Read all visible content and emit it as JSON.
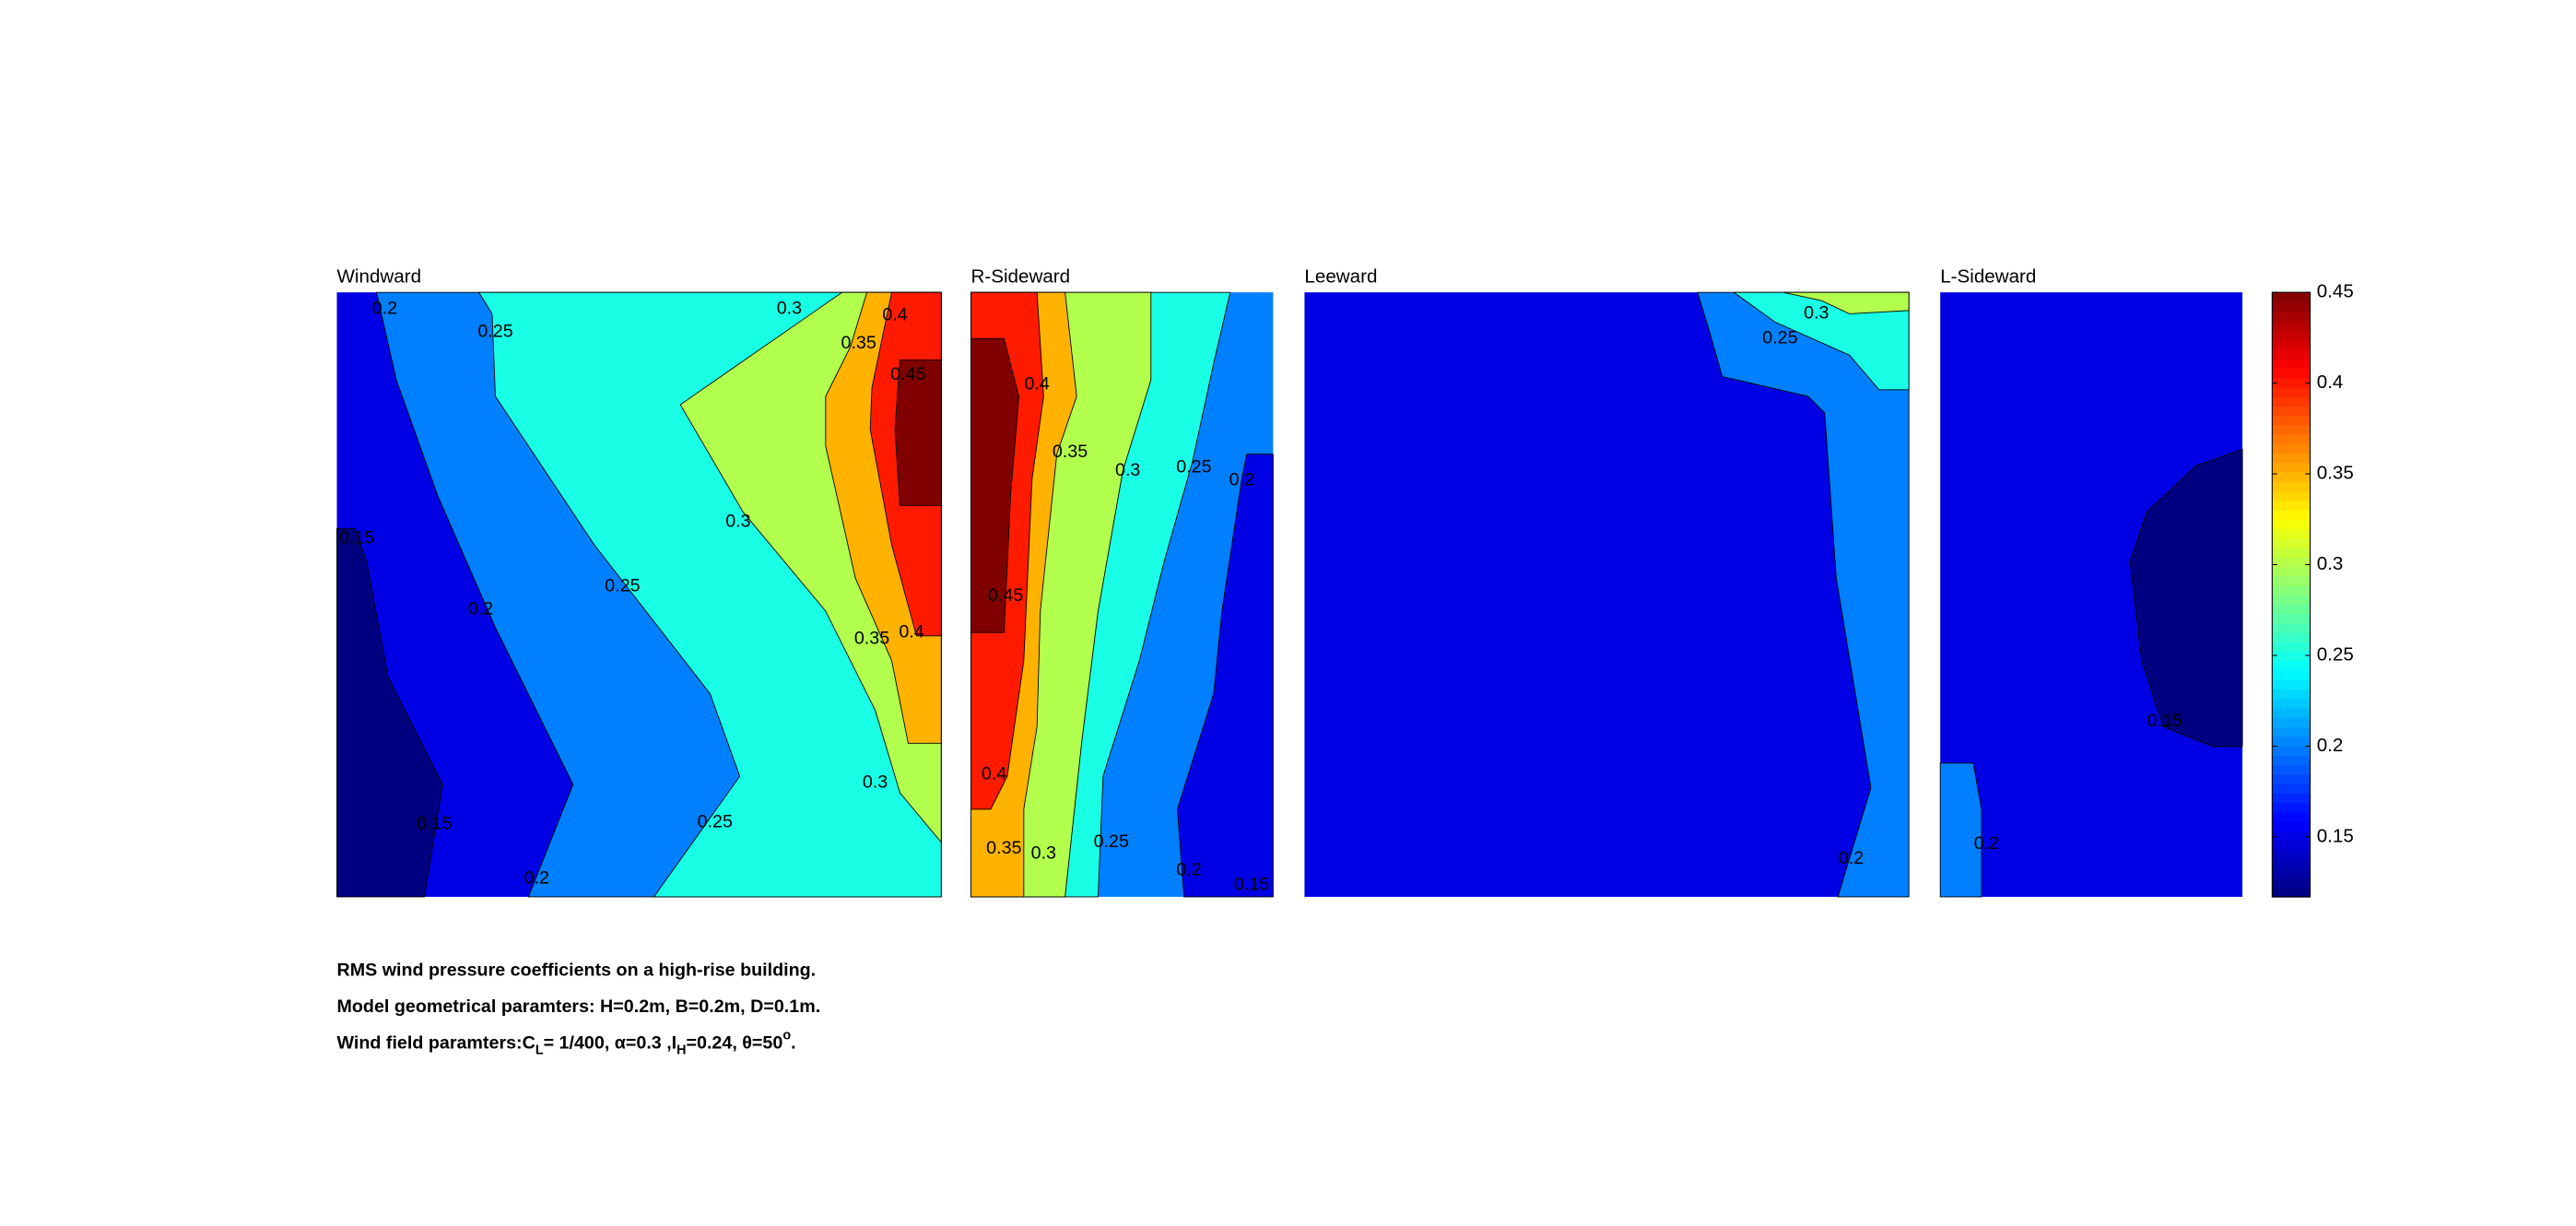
{
  "chart_data": [
    {
      "type": "contour",
      "title": "Windward",
      "levels": [
        0.15,
        0.2,
        0.25,
        0.3,
        0.35,
        0.4,
        0.45
      ],
      "contour_labels": [
        0.2,
        0.25,
        0.3,
        0.35,
        0.4,
        0.45,
        0.15,
        0.3,
        0.25,
        0.2,
        0.35,
        0.4,
        0.3,
        0.25,
        0.15,
        0.2
      ]
    },
    {
      "type": "contour",
      "title": "R-Sideward",
      "levels": [
        0.15,
        0.2,
        0.25,
        0.3,
        0.35,
        0.4,
        0.45
      ],
      "contour_labels": [
        0.4,
        0.35,
        0.3,
        0.25,
        0.2,
        0.45,
        0.4,
        0.35,
        0.3,
        0.25,
        0.2,
        0.15
      ]
    },
    {
      "type": "contour",
      "title": "Leeward",
      "levels": [
        0.15,
        0.2,
        0.25,
        0.3
      ],
      "contour_labels": [
        0.3,
        0.25,
        0.2
      ]
    },
    {
      "type": "contour",
      "title": "L-Sideward",
      "levels": [
        0.15,
        0.2
      ],
      "contour_labels": [
        0.15,
        0.2
      ]
    }
  ],
  "colorbar": {
    "colormap": "jet",
    "clim": [
      0.117,
      0.45
    ],
    "ticks": [
      0.15,
      0.2,
      0.25,
      0.3,
      0.35,
      0.4,
      0.45
    ]
  },
  "notes": [
    "RMS wind pressure coefficients on a high-rise building.",
    "Model geometrical paramters: H=0.2m, B=0.2m, D=0.1m.",
    [
      {
        "text": "Wind field paramters:C"
      },
      {
        "text": "L",
        "script": "sub"
      },
      {
        "text": "= 1/400, α=0.3 ,I"
      },
      {
        "text": "H",
        "script": "sub"
      },
      {
        "text": "=0.24, θ=50"
      },
      {
        "text": "o",
        "script": "super"
      },
      {
        "text": "."
      }
    ]
  ]
}
